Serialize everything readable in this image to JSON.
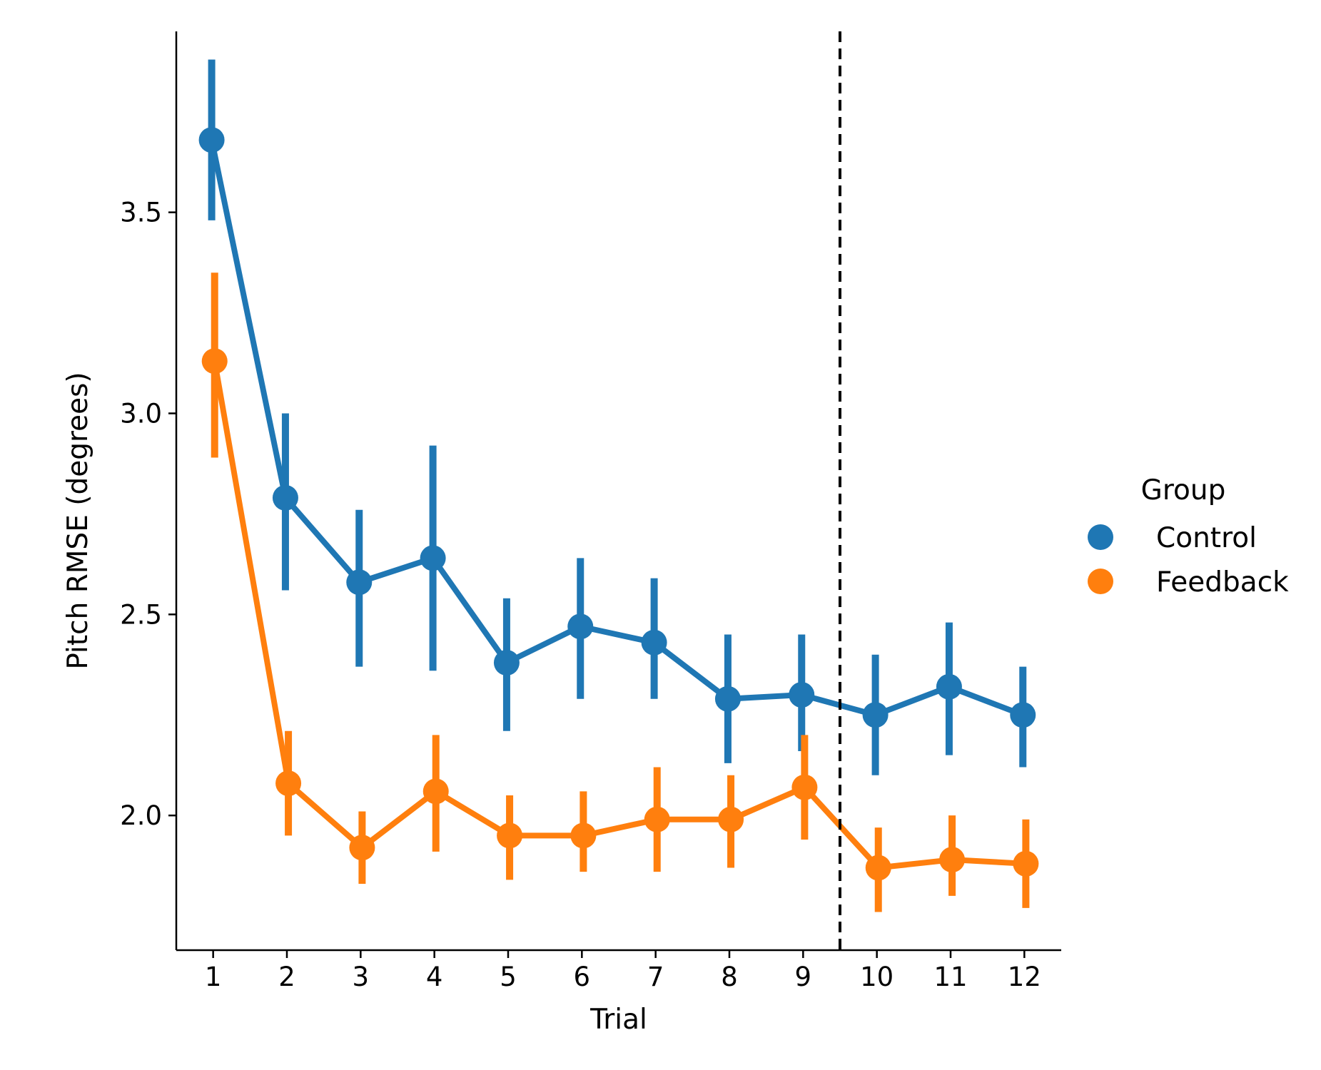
{
  "chart_data": {
    "type": "line",
    "xlabel": "Trial",
    "ylabel": "Pitch RMSE (degrees)",
    "x": [
      1,
      2,
      3,
      4,
      5,
      6,
      7,
      8,
      9,
      10,
      11,
      12
    ],
    "x_tick_labels": [
      "1",
      "2",
      "3",
      "4",
      "5",
      "6",
      "7",
      "8",
      "9",
      "10",
      "11",
      "12"
    ],
    "y_ticks": [
      2.0,
      2.5,
      3.0,
      3.5
    ],
    "y_tick_labels": [
      "2.0",
      "2.5",
      "3.0",
      "3.5"
    ],
    "ylim": [
      1.665,
      3.95
    ],
    "grid": false,
    "reference_line": {
      "x": 9.5,
      "style": "dashed",
      "color": "#000000"
    },
    "legend": {
      "title": "Group",
      "placement": "right-outside"
    },
    "series": [
      {
        "name": "Control",
        "color": "#1f77b4",
        "x_offset": -0.02,
        "values": [
          3.68,
          2.79,
          2.58,
          2.64,
          2.38,
          2.47,
          2.43,
          2.29,
          2.3,
          2.25,
          2.32,
          2.25
        ],
        "ci_low": [
          3.48,
          2.56,
          2.37,
          2.36,
          2.21,
          2.29,
          2.29,
          2.13,
          2.16,
          2.1,
          2.15,
          2.12
        ],
        "ci_high": [
          3.88,
          3.0,
          2.76,
          2.92,
          2.54,
          2.64,
          2.59,
          2.45,
          2.45,
          2.4,
          2.48,
          2.37
        ]
      },
      {
        "name": "Feedback",
        "color": "#ff7f0e",
        "x_offset": 0.02,
        "values": [
          3.13,
          2.08,
          1.92,
          2.06,
          1.95,
          1.95,
          1.99,
          1.99,
          2.07,
          1.87,
          1.89,
          1.88
        ],
        "ci_low": [
          2.89,
          1.95,
          1.83,
          1.91,
          1.84,
          1.86,
          1.86,
          1.87,
          1.94,
          1.76,
          1.8,
          1.77
        ],
        "ci_high": [
          3.35,
          2.21,
          2.01,
          2.2,
          2.05,
          2.06,
          2.12,
          2.1,
          2.2,
          1.97,
          2.0,
          1.99
        ]
      }
    ]
  }
}
